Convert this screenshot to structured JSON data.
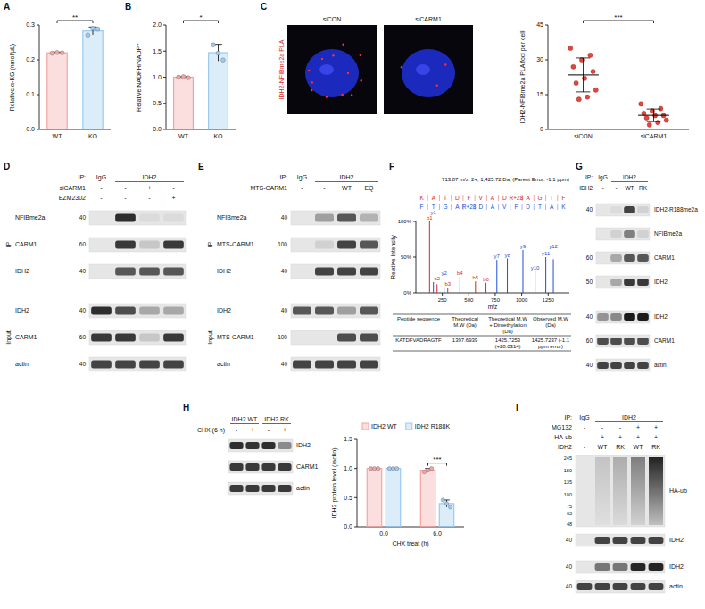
{
  "chart_data": [
    {
      "type": "bar",
      "categories": [
        "WT",
        "KO"
      ],
      "values": [
        0.22,
        0.283
      ],
      "errors": [
        0.002,
        0.011
      ],
      "points": [
        [
          0.219,
          0.221,
          0.22
        ],
        [
          0.271,
          0.29,
          0.288
        ]
      ],
      "colors": [
        "#f4a3a3",
        "#9ccaf0"
      ],
      "ylabel": "Relative α-KG (nmol/μL)",
      "ylim": [
        0,
        0.3
      ],
      "yticks": [
        {
          "value": 0,
          "label": "0.0"
        },
        0.1,
        0.2,
        0.3
      ],
      "annotations": [
        "**"
      ]
    },
    {
      "type": "bar",
      "categories": [
        "WT",
        "KO"
      ],
      "values": [
        1.0,
        1.47
      ],
      "errors": [
        0.01,
        0.16
      ],
      "points": [
        [
          1.0,
          1.01,
          0.99
        ],
        [
          1.62,
          1.46,
          1.33
        ]
      ],
      "colors": [
        "#f4a3a3",
        "#9ccaf0"
      ],
      "ylabel": "Relative NADPH/NADP⁺",
      "ylim": [
        0,
        2
      ],
      "yticks": [
        {
          "value": 0,
          "label": "0.0"
        },
        0.5,
        {
          "value": 1,
          "label": "1.0"
        },
        1.5,
        {
          "value": 2,
          "label": "2.0"
        }
      ],
      "annotations": [
        "*"
      ]
    },
    {
      "type": "scatter",
      "categories": [
        "siCON",
        "siCARM1"
      ],
      "points": [
        [
          35,
          32,
          30,
          27,
          25,
          22,
          20,
          17,
          14,
          13
        ],
        [
          11,
          9,
          8,
          7,
          6,
          6,
          5,
          4,
          3,
          2
        ]
      ],
      "values": [
        23.5,
        6.1
      ],
      "errors": [
        7.3,
        2.7
      ],
      "color": "#e0473f",
      "ylabel": "IDH2-NFIBme2a PLA foci per cell",
      "ylim": [
        0,
        45
      ],
      "yticks": [
        0,
        15,
        30,
        45
      ],
      "annotations": [
        "***"
      ]
    },
    {
      "type": "stem",
      "title": "713.87 m/z, 2+, 1,425.72 Da, (Parent Error: -1.1 ppm)",
      "xlabel": "m/z",
      "ylabel": "Relative Intensity",
      "xlim": [
        0,
        1450
      ],
      "xticks": [
        250,
        500,
        750,
        1000,
        1250
      ],
      "ylim": [
        0,
        100
      ],
      "yticks": [
        {
          "value": 0,
          "label": "0%"
        },
        {
          "value": 50,
          "label": "50%"
        },
        {
          "value": 100,
          "label": "100%"
        }
      ],
      "sequences": [
        [
          "K",
          "A",
          "T",
          "D",
          "F",
          "V",
          "A",
          "D",
          "R+28",
          "A",
          "G",
          "T",
          "F"
        ],
        [
          "F",
          "T",
          "G",
          "A",
          "R+28",
          "D",
          "A",
          "V",
          "F",
          "D",
          "T",
          "A",
          "K"
        ]
      ],
      "series": [
        {
          "color": "#d62728",
          "x": [
            129.1,
            200.1,
            301.2,
            416.2,
            563.3,
            662.3
          ],
          "values": [
            100,
            12,
            7,
            22,
            16,
            14
          ],
          "labels": [
            "b1",
            "b2",
            "b3",
            "b4",
            "b5",
            "b6"
          ]
        },
        {
          "color": "#1f4fd6",
          "x": [
            166.1,
            267.1,
            765.4,
            864.5,
            1011.5,
            1126.6,
            1227.6,
            1298.7
          ],
          "values": [
            15,
            8,
            46,
            48,
            60,
            30,
            50,
            47
          ],
          "labels": [
            "y1",
            "y2",
            "y7",
            "y8",
            "y9",
            "y10",
            "y11",
            "y12"
          ]
        }
      ]
    },
    {
      "type": "bar",
      "categories": [
        "0.0",
        "6.0"
      ],
      "xlabel": "CHX treat (h)",
      "ylabel": "IDH2 protein level (/actin)",
      "ylim": [
        0,
        1.5
      ],
      "yticks": [
        {
          "value": 0,
          "label": "0.0"
        },
        0.5,
        {
          "value": 1,
          "label": "1.0"
        },
        1.5
      ],
      "legend": "top",
      "series": [
        {
          "name": "IDH2 WT",
          "color": "#f4a3a3",
          "values": [
            1.0,
            0.97
          ],
          "errors": [
            0,
            0.03
          ],
          "points": [
            [
              1,
              1,
              1
            ],
            [
              0.94,
              0.97,
              1.0
            ]
          ]
        },
        {
          "name": "IDH2 R188K",
          "color": "#9ccaf0",
          "values": [
            1.0,
            0.4
          ],
          "errors": [
            0,
            0.06
          ],
          "points": [
            [
              1,
              1,
              1
            ],
            [
              0.46,
              0.4,
              0.34
            ]
          ]
        }
      ],
      "annotations": [
        "***"
      ]
    }
  ],
  "figure": {
    "panel_letters": [
      "A",
      "B",
      "C",
      "D",
      "E",
      "F",
      "G",
      "H",
      "I"
    ],
    "images": {
      "labels": [
        "siCON",
        "siCARM1"
      ],
      "side_label": "IDH2-NFIBme2a PLA"
    },
    "table": {
      "header": [
        "Peptide sequence",
        "Theoretical M.W (Da)",
        "Theoretical M.W + Dimethylation (Da)",
        "Observed M.W (Da)"
      ],
      "rows": [
        [
          "KATDFVADRAGTF",
          "1397.6939",
          "1425.7253 (+28.0314)",
          "1425.7237 (-1.1 ppm error)"
        ]
      ]
    },
    "blots": [
      {
        "header": {
          "prefix": "IP:",
          "groups": [
            {
              "label": "IgG",
              "lanes": 1
            },
            {
              "label": "IDH2",
              "lanes": 3
            }
          ]
        },
        "conditions": [
          {
            "label": "siCARM1",
            "values": [
              "-",
              "-",
              "+",
              "-"
            ]
          },
          {
            "label": "EZM2302",
            "values": [
              "-",
              "-",
              "-",
              "+"
            ]
          }
        ],
        "sections": [
          {
            "label": "IP",
            "rows": [
              {
                "label": "NFIBme2a",
                "marker": 40,
                "bands": [
                  0,
                  0.9,
                  0.05,
                  0.05
                ]
              },
              {
                "label": "CARM1",
                "marker": 60,
                "bands": [
                  0,
                  0.85,
                  0.15,
                  0.85
                ]
              },
              {
                "label": "IDH2",
                "marker": 40,
                "bands": [
                  0,
                  0.7,
                  0.7,
                  0.7
                ]
              }
            ]
          },
          {
            "label": "Input",
            "rows": [
              {
                "label": "IDH2",
                "marker": 40,
                "bands": [
                  0.9,
                  0.75,
                  0.3,
                  0.3
                ]
              },
              {
                "label": "CARM1",
                "marker": 60,
                "bands": [
                  0.85,
                  0.85,
                  0.15,
                  0.85
                ]
              },
              {
                "label": "actin",
                "marker": 40,
                "bands": [
                  0.8,
                  0.8,
                  0.8,
                  0.8
                ]
              }
            ]
          }
        ]
      },
      {
        "header": {
          "prefix": "IP:",
          "groups": [
            {
              "label": "IgG",
              "lanes": 1
            },
            {
              "label": "IDH2",
              "lanes": 3
            }
          ]
        },
        "conditions": [
          {
            "label": "MTS-CARM1",
            "values": [
              "-",
              "-",
              "WT",
              "EQ"
            ]
          }
        ],
        "sections": [
          {
            "label": "IP",
            "rows": [
              {
                "label": "NFIBme2a",
                "marker": 40,
                "bands": [
                  0,
                  0.35,
                  0.7,
                  0.25
                ]
              },
              {
                "label": "MTS-CARM1",
                "marker": 100,
                "bands": [
                  0,
                  0.1,
                  0.8,
                  0.7
                ]
              },
              {
                "label": "IDH2",
                "marker": 40,
                "bands": [
                  0,
                  0.8,
                  0.8,
                  0.8
                ]
              }
            ]
          },
          {
            "label": "Input",
            "rows": [
              {
                "label": "IDH2",
                "marker": 40,
                "bands": [
                  0.7,
                  0.7,
                  0.35,
                  0.7
                ]
              },
              {
                "label": "MTS-CARM1",
                "marker": 100,
                "bands": [
                  0,
                  0,
                  0.75,
                  0.75
                ]
              },
              {
                "label": "actin",
                "marker": 40,
                "bands": [
                  0.8,
                  0.8,
                  0.8,
                  0.8
                ]
              }
            ]
          }
        ]
      },
      {
        "header": {
          "prefix": "IP:",
          "groups": [
            {
              "label": "IgG",
              "lanes": 1
            },
            {
              "label": "IDH2",
              "lanes": 3
            }
          ]
        },
        "conditions": [
          {
            "label": "IDH2",
            "values": [
              "-",
              "-",
              "WT",
              "RK"
            ]
          }
        ],
        "sections": [
          {
            "rows": [
              {
                "label": "IDH2-R188me2a",
                "marker": 40,
                "bands": [
                  0,
                  0.05,
                  0.8,
                  0.1
                ]
              },
              {
                "label": "NFIBme2a",
                "bands": [
                  0,
                  0.1,
                  0.5,
                  0.1
                ]
              },
              {
                "label": "CARM1",
                "marker": 60,
                "bands": [
                  0,
                  0.3,
                  0.7,
                  0.7
                ]
              },
              {
                "label": "IDH2",
                "marker": 50,
                "bands": [
                  0,
                  0.3,
                  0.85,
                  0.85
                ]
              }
            ]
          },
          {
            "rows": [
              {
                "label": "IDH2",
                "marker": 40,
                "bands": [
                  0.4,
                  0.45,
                  1,
                  1
                ]
              },
              {
                "label": "CARM1",
                "marker": 60,
                "bands": [
                  0.75,
                  0.75,
                  0.75,
                  0.75
                ]
              },
              {
                "label": "actin",
                "marker": 40,
                "bands": [
                  0.8,
                  0.8,
                  0.8,
                  0.8
                ]
              }
            ]
          }
        ]
      },
      {
        "header": {
          "groups": [
            {
              "label": "IDH2 WT",
              "lanes": 2
            },
            {
              "label": "IDH2 RK",
              "lanes": 2
            }
          ]
        },
        "conditions": [
          {
            "label": "CHX (6 h)",
            "values": [
              "-",
              "+",
              "-",
              "+"
            ]
          }
        ],
        "sections": [
          {
            "rows": [
              {
                "label": "IDH2",
                "bands": [
                  0.9,
                  0.88,
                  0.9,
                  0.45
                ]
              },
              {
                "label": "CARM1",
                "bands": [
                  0.85,
                  0.85,
                  0.85,
                  0.85
                ]
              },
              {
                "label": "actin",
                "bands": [
                  0.85,
                  0.85,
                  0.85,
                  0.85
                ]
              }
            ]
          }
        ]
      },
      {
        "header": {
          "prefix": "IP:",
          "groups": [
            {
              "label": "IgG",
              "lanes": 1
            },
            {
              "label": "IDH2",
              "lanes": 4
            }
          ]
        },
        "conditions": [
          {
            "label": "MG132",
            "values": [
              "-",
              "-",
              "-",
              "+",
              "+"
            ]
          },
          {
            "label": "HA-ub",
            "values": [
              "-",
              "+",
              "+",
              "+",
              "+"
            ]
          },
          {
            "label": "IDH2",
            "values": [
              "-",
              "WT",
              "RK",
              "WT",
              "RK"
            ]
          }
        ],
        "sections": [
          {
            "rows": [
              {
                "label": "HA-ub",
                "markers": [
                  245,
                  180,
                  135,
                  100,
                  75,
                  63,
                  48
                ],
                "bands": [
                  0,
                  0.15,
                  0.25,
                  0.45,
                  0.85
                ]
              },
              {
                "label": "IDH2",
                "marker": 40,
                "bands": [
                  0,
                  0.8,
                  0.8,
                  0.8,
                  0.8
                ]
              }
            ]
          },
          {
            "rows": [
              {
                "label": "IDH2",
                "marker": 40,
                "bands": [
                  0,
                  0.55,
                  0.55,
                  0.95,
                  0.95
                ]
              },
              {
                "label": "actin",
                "marker": 40,
                "bands": [
                  0.8,
                  0.8,
                  0.8,
                  0.8,
                  0.8
                ]
              }
            ]
          }
        ]
      }
    ]
  }
}
